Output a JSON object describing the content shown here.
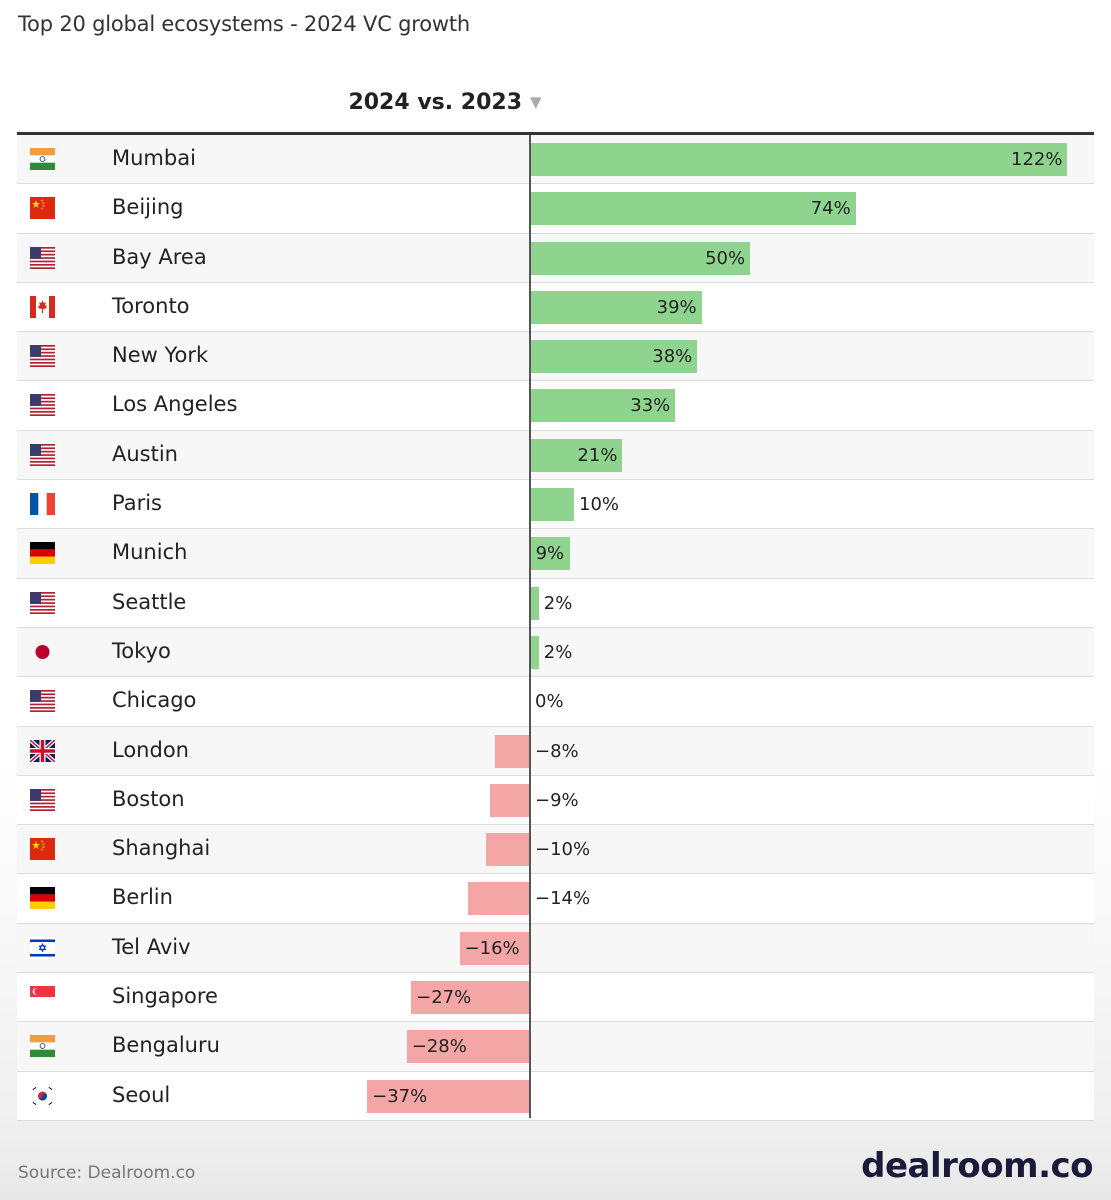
{
  "title": "Top 20 global ecosystems - 2024 VC growth",
  "column_header": "2024 vs. 2023",
  "sort_icon": "sort-descending-icon",
  "source": "Source: Dealroom.co",
  "brand": "dealroom.co",
  "colors": {
    "positive": "#8ed48e",
    "negative": "#f4a6a6",
    "axis": "#555555"
  },
  "chart_data": {
    "type": "bar",
    "orientation": "horizontal",
    "title": "Top 20 global ecosystems - 2024 VC growth",
    "column_header": "2024 vs. 2023",
    "unit": "%",
    "xlim": [
      -40,
      122
    ],
    "rows": [
      {
        "city": "Mumbai",
        "flag": "india-flag-icon",
        "value": 122,
        "label": "122%"
      },
      {
        "city": "Beijing",
        "flag": "china-flag-icon",
        "value": 74,
        "label": "74%"
      },
      {
        "city": "Bay Area",
        "flag": "usa-flag-icon",
        "value": 50,
        "label": "50%"
      },
      {
        "city": "Toronto",
        "flag": "canada-flag-icon",
        "value": 39,
        "label": "39%"
      },
      {
        "city": "New York",
        "flag": "usa-flag-icon",
        "value": 38,
        "label": "38%"
      },
      {
        "city": "Los Angeles",
        "flag": "usa-flag-icon",
        "value": 33,
        "label": "33%"
      },
      {
        "city": "Austin",
        "flag": "usa-flag-icon",
        "value": 21,
        "label": "21%"
      },
      {
        "city": "Paris",
        "flag": "france-flag-icon",
        "value": 10,
        "label": "10%"
      },
      {
        "city": "Munich",
        "flag": "germany-flag-icon",
        "value": 9,
        "label": "9%"
      },
      {
        "city": "Seattle",
        "flag": "usa-flag-icon",
        "value": 2,
        "label": "2%"
      },
      {
        "city": "Tokyo",
        "flag": "japan-flag-icon",
        "value": 2,
        "label": "2%"
      },
      {
        "city": "Chicago",
        "flag": "usa-flag-icon",
        "value": 0,
        "label": "0%"
      },
      {
        "city": "London",
        "flag": "uk-flag-icon",
        "value": -8,
        "label": "−8%"
      },
      {
        "city": "Boston",
        "flag": "usa-flag-icon",
        "value": -9,
        "label": "−9%"
      },
      {
        "city": "Shanghai",
        "flag": "china-flag-icon",
        "value": -10,
        "label": "−10%"
      },
      {
        "city": "Berlin",
        "flag": "germany-flag-icon",
        "value": -14,
        "label": "−14%"
      },
      {
        "city": "Tel Aviv",
        "flag": "israel-flag-icon",
        "value": -16,
        "label": "−16%"
      },
      {
        "city": "Singapore",
        "flag": "singapore-flag-icon",
        "value": -27,
        "label": "−27%"
      },
      {
        "city": "Bengaluru",
        "flag": "india-flag-icon",
        "value": -28,
        "label": "−28%"
      },
      {
        "city": "Seoul",
        "flag": "south-korea-flag-icon",
        "value": -37,
        "label": "−37%"
      }
    ]
  }
}
